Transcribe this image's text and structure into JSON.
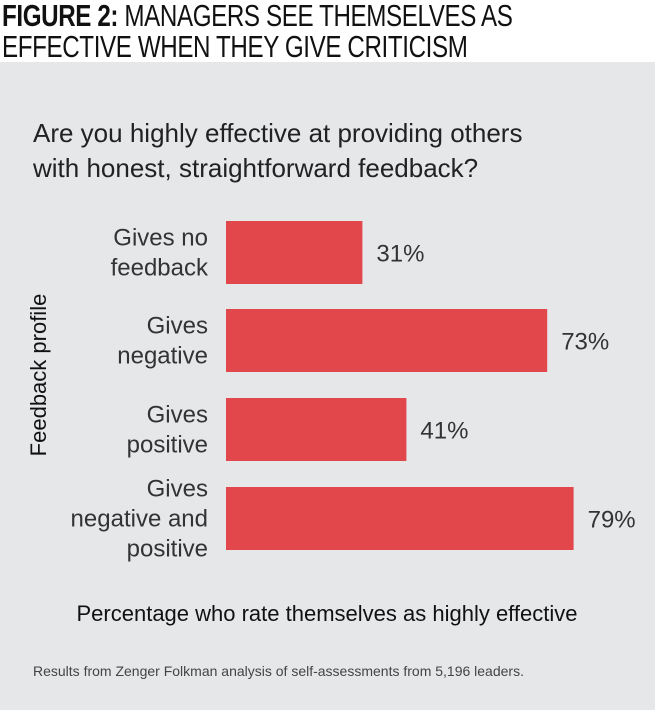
{
  "figure_label": "FIGURE 2:",
  "figure_title": "MANAGERS SEE THEMSELVES AS EFFECTIVE WHEN THEY GIVE CRITICISM",
  "figure_title_lines": [
    "MANAGERS SEE THEMSELVES AS",
    "EFFECTIVE WHEN THEY GIVE CRITICISM"
  ],
  "colors": {
    "bar": "#e2474b",
    "background": "#e6e7e9"
  },
  "chart_data": {
    "type": "bar",
    "orientation": "horizontal",
    "title": "Are you highly effective at providing others with honest, straightforward feedback?",
    "title_lines": [
      "Are you highly effective at providing others",
      "with honest, straightforward feedback?"
    ],
    "categories": [
      "Gives no feedback",
      "Gives negative",
      "Gives positive",
      "Gives negative and positive"
    ],
    "category_lines": [
      [
        "Gives no",
        "feedback"
      ],
      [
        "Gives",
        "negative"
      ],
      [
        "Gives",
        "positive"
      ],
      [
        "Gives",
        "negative and",
        "positive"
      ]
    ],
    "values": [
      31,
      73,
      41,
      79
    ],
    "data_labels": [
      "31%",
      "73%",
      "41%",
      "79%"
    ],
    "xlabel": "Percentage who rate themselves as highly effective",
    "ylabel": "Feedback profile",
    "xlim": [
      0,
      100
    ],
    "grid": false,
    "legend": "none"
  },
  "note": "Results from Zenger Folkman analysis of self-assessments from 5,196 leaders."
}
